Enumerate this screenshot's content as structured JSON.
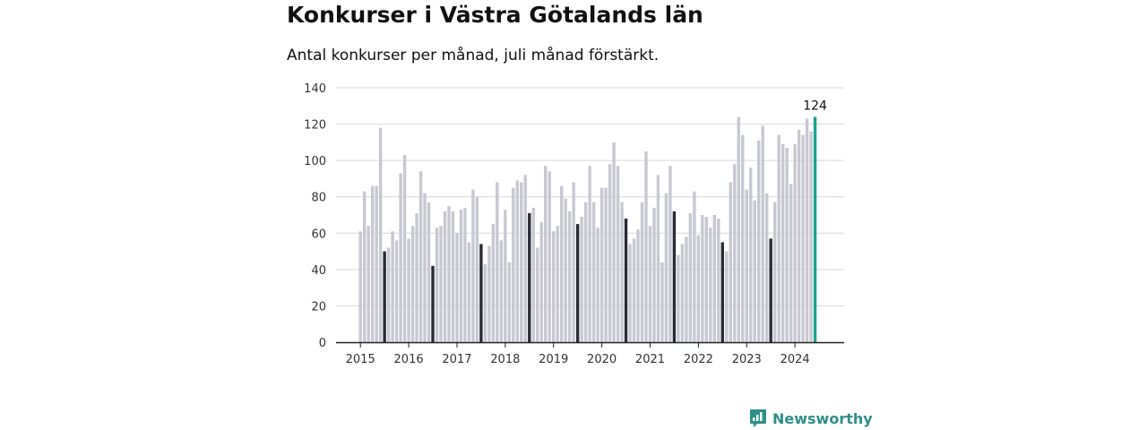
{
  "title": "Konkurser i Västra Götalands län",
  "subtitle": "Antal konkurser per månad, juli månad förstärkt.",
  "brand": {
    "name": "Newsworthy"
  },
  "colors": {
    "bar_default": "#c8c8d2",
    "bar_july": "#2b2b36",
    "bar_latest": "#1aa38f",
    "grid": "#d9d9d9",
    "axis": "#222222"
  },
  "chart_data": {
    "type": "bar",
    "title": "Konkurser i Västra Götalands län",
    "subtitle": "Antal konkurser per månad, juli månad förstärkt.",
    "xlabel": "",
    "ylabel": "",
    "ylim": [
      0,
      140
    ],
    "yticks": [
      0,
      20,
      40,
      60,
      80,
      100,
      120,
      140
    ],
    "grid": true,
    "start": "2015-01",
    "year_ticks": [
      "2015",
      "2016",
      "2017",
      "2018",
      "2019",
      "2020",
      "2021",
      "2022",
      "2023",
      "2024"
    ],
    "highlight": "juli månad förstärkt",
    "latest_label": "124",
    "values": [
      61,
      83,
      64,
      86,
      86,
      118,
      50,
      52,
      61,
      56,
      93,
      103,
      57,
      64,
      71,
      94,
      82,
      77,
      42,
      63,
      64,
      72,
      75,
      72,
      60,
      73,
      74,
      55,
      84,
      80,
      54,
      43,
      53,
      65,
      88,
      56,
      73,
      44,
      85,
      89,
      88,
      92,
      71,
      74,
      52,
      66,
      97,
      94,
      61,
      64,
      86,
      79,
      72,
      88,
      65,
      69,
      77,
      97,
      77,
      63,
      85,
      85,
      98,
      110,
      97,
      77,
      68,
      54,
      57,
      62,
      77,
      105,
      64,
      74,
      92,
      44,
      82,
      97,
      72,
      48,
      54,
      58,
      71,
      83,
      59,
      70,
      69,
      63,
      70,
      68,
      55,
      50,
      88,
      98,
      124,
      114,
      84,
      96,
      78,
      111,
      119,
      82,
      57,
      77,
      114,
      109,
      107,
      87,
      109,
      117,
      114,
      123,
      116,
      124
    ]
  }
}
